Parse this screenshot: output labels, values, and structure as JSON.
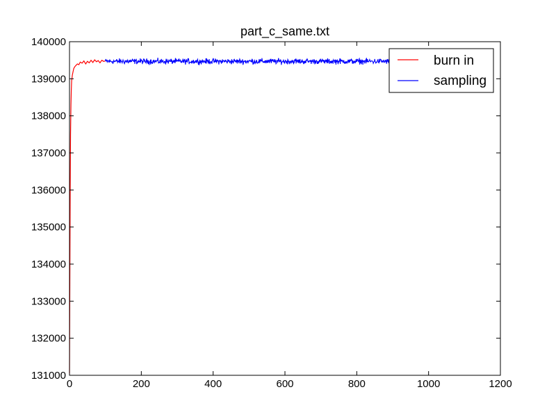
{
  "chart_data": {
    "type": "line",
    "title": "part_c_same.txt",
    "xlabel": "",
    "ylabel": "",
    "xlim": [
      0,
      1200
    ],
    "ylim": [
      131000,
      140000
    ],
    "xticks": [
      0,
      200,
      400,
      600,
      800,
      1000,
      1200
    ],
    "yticks": [
      131000,
      132000,
      133000,
      134000,
      135000,
      136000,
      137000,
      138000,
      139000,
      140000
    ],
    "grid": false,
    "legend_position": "top-right",
    "series": [
      {
        "name": "burn in",
        "color": "#ff0000",
        "x": [
          0,
          1,
          2,
          3,
          4,
          5,
          6,
          8,
          10,
          12,
          15,
          18,
          22,
          26,
          30,
          35,
          40,
          45,
          50,
          55,
          60,
          65,
          70,
          75,
          80,
          85,
          90,
          95,
          100
        ],
        "y": [
          131050,
          133500,
          136000,
          137500,
          138300,
          138700,
          138950,
          139100,
          139200,
          139280,
          139330,
          139360,
          139400,
          139380,
          139450,
          139420,
          139480,
          139400,
          139470,
          139430,
          139500,
          139440,
          139510,
          139460,
          139490,
          139430,
          139500,
          139470,
          139480
        ]
      },
      {
        "name": "sampling",
        "color": "#0000ff",
        "x_start": 100,
        "x_end": 900,
        "y_mean": 139470,
        "y_noise": 60
      }
    ]
  }
}
